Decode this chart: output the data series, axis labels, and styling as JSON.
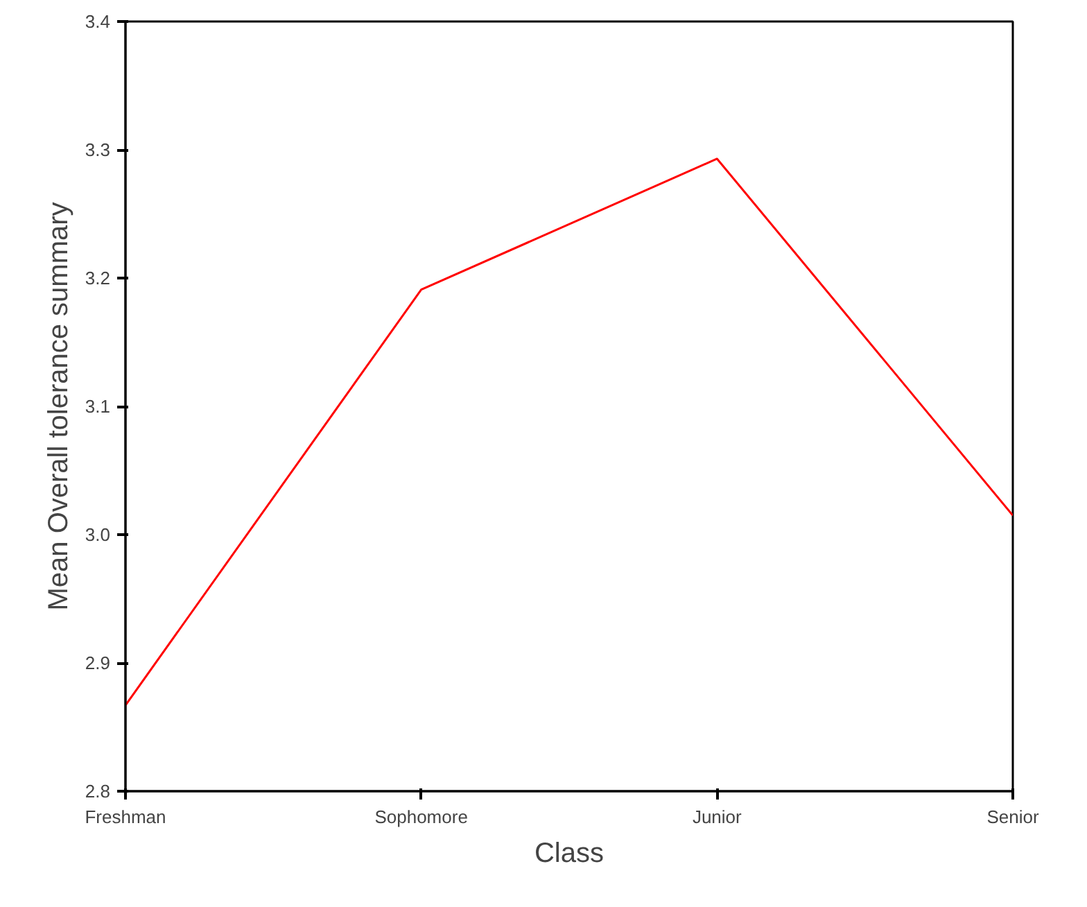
{
  "chart_data": {
    "type": "line",
    "xlabel": "Class",
    "ylabel": "Mean Overall tolerance summary",
    "categories": [
      "Freshman",
      "Sophomore",
      "Junior",
      "Senior"
    ],
    "series": [
      {
        "color": "#ff0000",
        "values": [
          2.867,
          3.191,
          3.293,
          3.015
        ]
      }
    ],
    "ylim": [
      2.8,
      3.4
    ],
    "yticks": [
      2.8,
      2.9,
      {
        "value": 3.0,
        "label": "3.0"
      },
      3.1,
      3.2,
      3.3,
      3.4
    ],
    "grid": false,
    "marker": "none",
    "line_style": "solid"
  }
}
